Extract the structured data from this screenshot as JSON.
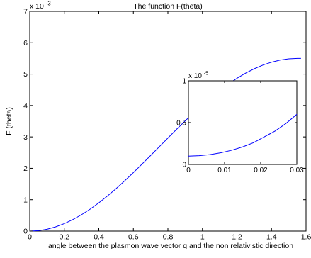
{
  "chart_data": [
    {
      "type": "line",
      "title": "The function F(theta)",
      "xlabel": "angle between the plasmon wave vector q and the non relativistic direction",
      "ylabel": "F (theta)",
      "y_exponent_label": "x 10",
      "y_exponent_power": "-3",
      "xlim": [
        0,
        1.6
      ],
      "ylim": [
        0,
        7
      ],
      "x_ticks": [
        0,
        0.2,
        0.4,
        0.6,
        0.8,
        1,
        1.2,
        1.4,
        1.6
      ],
      "x_tick_labels": [
        "0",
        "0.2",
        "0.4",
        "0.6",
        "0.8",
        "1",
        "1.2",
        "1.4",
        "1.6"
      ],
      "y_ticks": [
        0,
        1,
        2,
        3,
        4,
        5,
        6,
        7
      ],
      "y_tick_labels": [
        "0",
        "1",
        "2",
        "3",
        "4",
        "5",
        "6",
        "7"
      ],
      "grid": false,
      "series": [
        {
          "color": "#0000ff",
          "x": [
            0,
            0.05,
            0.1,
            0.15,
            0.2,
            0.25,
            0.3,
            0.35,
            0.4,
            0.45,
            0.5,
            0.55,
            0.6,
            0.65,
            0.7,
            0.75,
            0.8,
            0.85,
            0.9,
            0.95,
            1.0,
            1.05,
            1.1,
            1.15,
            1.2,
            1.25,
            1.3,
            1.35,
            1.4,
            1.45,
            1.5,
            1.55,
            1.5708
          ],
          "values": [
            0,
            0.015,
            0.06,
            0.135,
            0.238,
            0.368,
            0.522,
            0.7,
            0.9,
            1.118,
            1.353,
            1.602,
            1.863,
            2.132,
            2.408,
            2.686,
            2.964,
            3.24,
            3.509,
            3.77,
            4.02,
            4.257,
            4.478,
            4.682,
            4.867,
            5.03,
            5.171,
            5.288,
            5.38,
            5.447,
            5.488,
            5.501,
            5.502
          ]
        }
      ]
    },
    {
      "type": "line",
      "title": "",
      "xlabel": "",
      "ylabel": "",
      "y_exponent_label": "x 10",
      "y_exponent_power": "-5",
      "xlim": [
        0,
        0.03
      ],
      "ylim": [
        0,
        1
      ],
      "x_ticks": [
        0,
        0.01,
        0.02,
        0.03
      ],
      "x_tick_labels": [
        "0",
        "0.01",
        "0.02",
        "0.03"
      ],
      "y_ticks": [
        0,
        0.5,
        1
      ],
      "y_tick_labels": [
        "0",
        "0.5",
        "1"
      ],
      "grid": false,
      "series": [
        {
          "color": "#0000ff",
          "x": [
            0,
            0.003,
            0.006,
            0.009,
            0.012,
            0.015,
            0.018,
            0.021,
            0.024,
            0.027,
            0.03
          ],
          "values": [
            0.1,
            0.105,
            0.118,
            0.14,
            0.17,
            0.21,
            0.26,
            0.33,
            0.4,
            0.49,
            0.6
          ]
        }
      ]
    }
  ]
}
